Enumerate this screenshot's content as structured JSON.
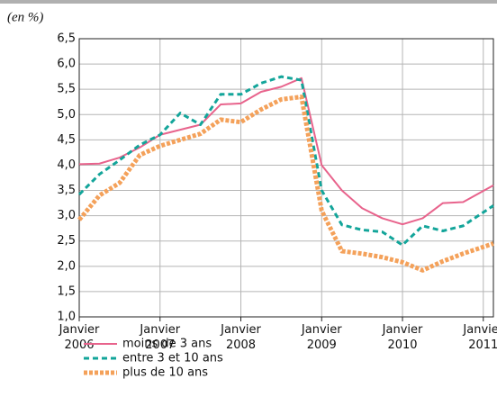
{
  "chart_data": {
    "type": "line",
    "unit_note": "(en %)",
    "x": [
      2006,
      2006.25,
      2006.5,
      2006.75,
      2007,
      2007.25,
      2007.5,
      2007.75,
      2008,
      2008.25,
      2008.5,
      2008.75,
      2009,
      2009.25,
      2009.5,
      2009.75,
      2010,
      2010.25,
      2010.5,
      2010.75,
      2011.125
    ],
    "xlim": [
      2006,
      2011.125
    ],
    "xticks": [
      {
        "value": 2006,
        "label": "Janvier\n2006"
      },
      {
        "value": 2007,
        "label": "Janvier\n2007"
      },
      {
        "value": 2008,
        "label": "Janvier\n2008"
      },
      {
        "value": 2009,
        "label": "Janvier\n2009"
      },
      {
        "value": 2010,
        "label": "Janvier\n2010"
      },
      {
        "value": 2011,
        "label": "Janvier\n2011"
      }
    ],
    "ylim": [
      1,
      6.5
    ],
    "yticks": [
      {
        "value": 1,
        "label": "1,0"
      },
      {
        "value": 1.5,
        "label": "1,5"
      },
      {
        "value": 2,
        "label": "2,0"
      },
      {
        "value": 2.5,
        "label": "2,5"
      },
      {
        "value": 3,
        "label": "3,0"
      },
      {
        "value": 3.5,
        "label": "3,5"
      },
      {
        "value": 4,
        "label": "4,0"
      },
      {
        "value": 4.5,
        "label": "4,5"
      },
      {
        "value": 5,
        "label": "5,0"
      },
      {
        "value": 5.5,
        "label": "5,5"
      },
      {
        "value": 6,
        "label": "6,0"
      },
      {
        "value": 6.5,
        "label": "6,5"
      }
    ],
    "grid": true,
    "legend": "bottom-left",
    "series": [
      {
        "name": "moins de 3 ans",
        "color": "#e8638c",
        "style": "solid",
        "values": [
          4.02,
          4.03,
          4.15,
          4.35,
          4.6,
          4.7,
          4.8,
          5.2,
          5.22,
          5.45,
          5.55,
          5.72,
          4.0,
          3.5,
          3.15,
          2.95,
          2.83,
          2.95,
          3.25,
          3.27,
          3.6
        ]
      },
      {
        "name": "entre 3 et 10 ans",
        "color": "#13a59a",
        "style": "dashed",
        "values": [
          3.42,
          3.82,
          4.1,
          4.4,
          4.6,
          5.03,
          4.8,
          5.4,
          5.4,
          5.62,
          5.75,
          5.68,
          3.5,
          2.82,
          2.72,
          2.68,
          2.42,
          2.8,
          2.7,
          2.8,
          3.2
        ]
      },
      {
        "name": "plus de 10 ans",
        "color": "#f4a15a",
        "style": "dotted",
        "values": [
          2.92,
          3.4,
          3.65,
          4.2,
          4.38,
          4.5,
          4.62,
          4.9,
          4.85,
          5.1,
          5.3,
          5.35,
          3.1,
          2.3,
          2.25,
          2.18,
          2.08,
          1.92,
          2.1,
          2.25,
          2.45
        ]
      }
    ]
  }
}
